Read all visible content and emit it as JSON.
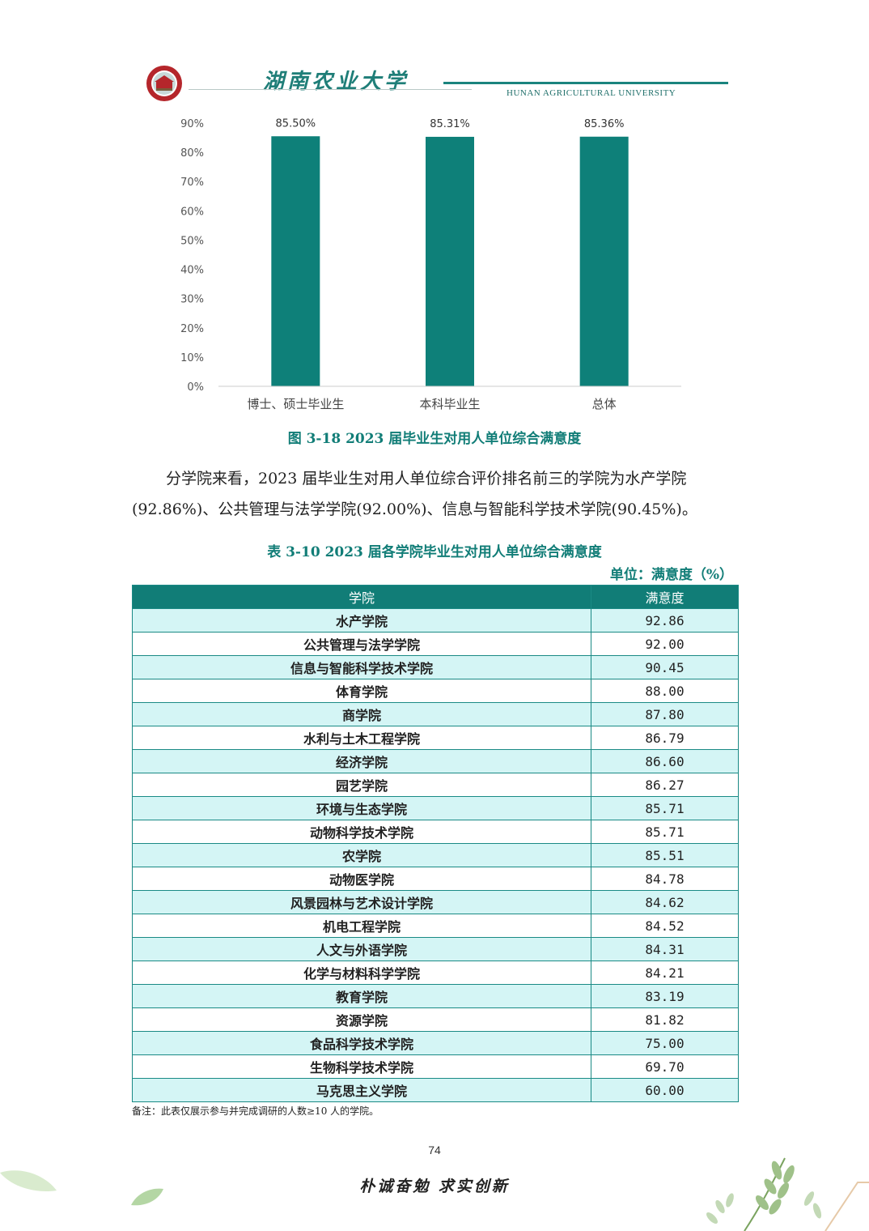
{
  "header": {
    "brand": "湖南农业大学",
    "brand_en": "HUNAN AGRICULTURAL UNIVERSITY",
    "logo_icon": "university-seal-icon",
    "accent": "#117d77"
  },
  "chart_data": {
    "type": "bar",
    "categories": [
      "博士、硕士毕业生",
      "本科毕业生",
      "总体"
    ],
    "values": [
      85.5,
      85.31,
      85.36
    ],
    "data_labels": [
      "85.50%",
      "85.31%",
      "85.36%"
    ],
    "yticks": [
      "0%",
      "10%",
      "20%",
      "30%",
      "40%",
      "50%",
      "60%",
      "70%",
      "80%",
      "90%"
    ],
    "ylim": [
      0,
      90
    ],
    "color": "#0e8079",
    "grid": false,
    "legend": "none"
  },
  "figure_caption": "图 3-18 2023 届毕业生对用人单位综合满意度",
  "paragraph": "分学院来看，2023 届毕业生对用人单位综合评价排名前三的学院为水产学院(92.86%)、公共管理与法学学院(92.00%)、信息与智能科学技术学院(90.45%)。",
  "table_caption": "表 3-10 2023 届各学院毕业生对用人单位综合满意度",
  "unit_label": "单位：满意度（%）",
  "table": {
    "headers": [
      "学院",
      "满意度"
    ],
    "rows": [
      [
        "水产学院",
        "92.86"
      ],
      [
        "公共管理与法学学院",
        "92.00"
      ],
      [
        "信息与智能科学技术学院",
        "90.45"
      ],
      [
        "体育学院",
        "88.00"
      ],
      [
        "商学院",
        "87.80"
      ],
      [
        "水利与土木工程学院",
        "86.79"
      ],
      [
        "经济学院",
        "86.60"
      ],
      [
        "园艺学院",
        "86.27"
      ],
      [
        "环境与生态学院",
        "85.71"
      ],
      [
        "动物科学技术学院",
        "85.71"
      ],
      [
        "农学院",
        "85.51"
      ],
      [
        "动物医学院",
        "84.78"
      ],
      [
        "风景园林与艺术设计学院",
        "84.62"
      ],
      [
        "机电工程学院",
        "84.52"
      ],
      [
        "人文与外语学院",
        "84.31"
      ],
      [
        "化学与材料科学学院",
        "84.21"
      ],
      [
        "教育学院",
        "83.19"
      ],
      [
        "资源学院",
        "81.82"
      ],
      [
        "食品科学技术学院",
        "75.00"
      ],
      [
        "生物科学技术学院",
        "69.70"
      ],
      [
        "马克思主义学院",
        "60.00"
      ]
    ]
  },
  "note": "备注：此表仅展示参与并完成调研的人数≥10 人的学院。",
  "page_number": "74",
  "motto": "朴诚奋勉  求实创新"
}
